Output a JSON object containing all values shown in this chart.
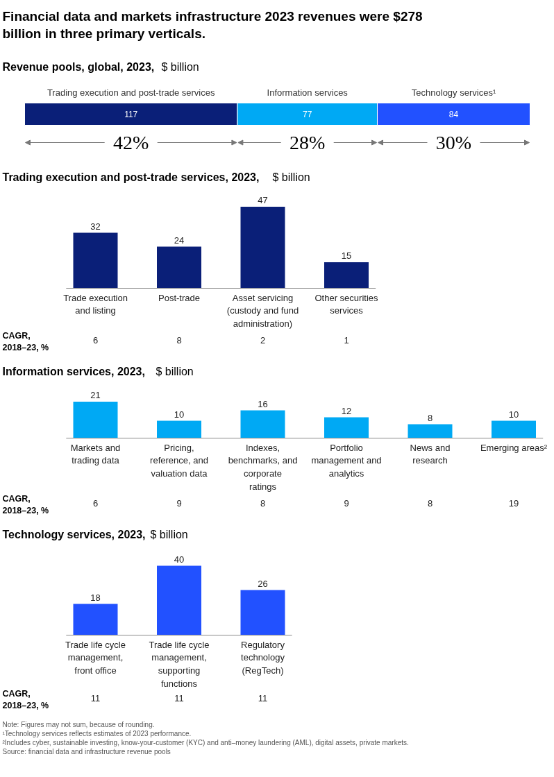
{
  "chart_data": [
    {
      "type": "bar",
      "orientation": "horizontal",
      "stacked": true,
      "data_labels": true,
      "title": "Financial data and markets infrastructure 2023 revenues were $278 billion in three primary verticals.",
      "subtitle": "Revenue pools, global, 2023, $ billion",
      "categories": [
        null
      ],
      "series": [
        {
          "name": "Trading execution and post-trade services",
          "color": "#0a1f78",
          "values": [
            117
          ]
        },
        {
          "name": "Information services",
          "color": "#00a9f4",
          "values": [
            77
          ]
        },
        {
          "name": "Technology services¹",
          "color": "#2251ff",
          "values": [
            84
          ]
        }
      ],
      "annotations": [
        "42%",
        "28%",
        "30%"
      ]
    },
    {
      "type": "bar",
      "data_labels": true,
      "title": "Trading execution and post-trade services, 2023, $ billion",
      "categories": [
        "Trade execution and listing",
        "Post-trade",
        "Asset servicing (custody and fund administration)",
        "Other securities services"
      ],
      "values": [
        32,
        24,
        47,
        15
      ],
      "color": "#0a1f78",
      "annotations": [
        "CAGR, 2018–23, %",
        "6",
        "8",
        "2",
        "1"
      ]
    },
    {
      "type": "bar",
      "data_labels": true,
      "title": "Information services, 2023, $ billion",
      "categories": [
        "Markets and trading data",
        "Pricing, reference, and valuation data",
        "Indexes, benchmarks, and corporate ratings",
        "Portfolio management and analytics",
        "News and research",
        "Emerging areas²"
      ],
      "values": [
        21,
        10,
        16,
        12,
        8,
        10
      ],
      "color": "#00a9f4",
      "annotations": [
        "CAGR, 2018–23, %",
        "6",
        "9",
        "8",
        "9",
        "8",
        "19"
      ]
    },
    {
      "type": "bar",
      "data_labels": true,
      "title": "Technology services, 2023, $ billion",
      "categories": [
        "Trade life cycle management, front office",
        "Trade life cycle management, supporting functions",
        "Regulatory technology (RegTech)"
      ],
      "values": [
        18,
        40,
        26
      ],
      "color": "#2251ff",
      "annotations": [
        "CAGR, 2018–23, %",
        "11",
        "11",
        "11",
        "Note: Figures may not sum, because of rounding.",
        "¹Technology services reflects estimates of 2023 performance.",
        "²Includes cyber, sustainable investing, know-your-customer (KYC) and anti–money laundering (AML), digital assets, private markets.",
        "Source: financial data and infrastructure revenue pools"
      ]
    }
  ]
}
